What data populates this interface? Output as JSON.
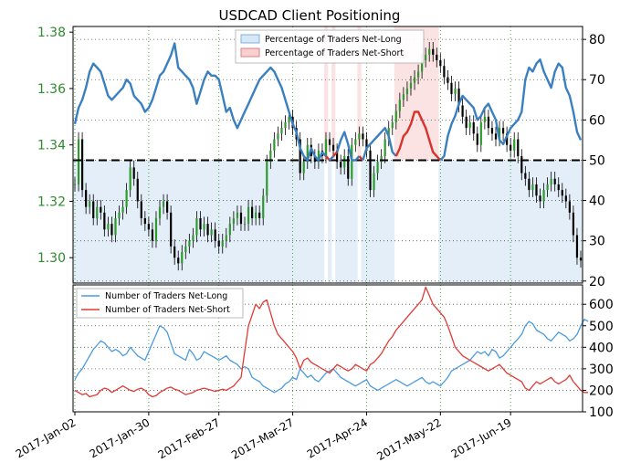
{
  "title": "USDCAD Client Positioning",
  "colors": {
    "price_axis": "#2e8b2e",
    "long_line": "#3a7fc0",
    "short_line": "#d8322a",
    "long_shade": "#e3eef8",
    "short_shade": "#fbe3e3",
    "candle": "#000000",
    "long_line_lower": "#4a9be0",
    "short_line_lower": "#e03a34",
    "grid": "#2ca02c"
  },
  "chart_data": [
    {
      "type": "line",
      "title": "USDCAD Client Positioning",
      "left_axis": {
        "ylim": [
          1.291,
          1.382
        ],
        "ticks": [
          "1.30",
          "1.32",
          "1.34",
          "1.36",
          "1.38"
        ]
      },
      "right_axis": {
        "ylim": [
          19.5,
          83.2
        ],
        "ticks": [
          "20",
          "30",
          "40",
          "50",
          "60",
          "70",
          "80"
        ]
      },
      "x_ticks": [
        "2017-Jan-02",
        "2017-Jan-30",
        "2017-Feb-27",
        "2017-Mar-27",
        "2017-Apr-24",
        "2017-May-22",
        "2017-Jun-19"
      ],
      "reference_line": 50,
      "legend": {
        "placement": "top-center",
        "entries": [
          "Percentage of Traders Net-Long",
          "Percentage of Traders Net-Short"
        ]
      },
      "price": [
        1.326,
        1.342,
        1.324,
        1.318,
        1.32,
        1.314,
        1.318,
        1.316,
        1.31,
        1.312,
        1.308,
        1.314,
        1.316,
        1.318,
        1.324,
        1.332,
        1.328,
        1.32,
        1.314,
        1.312,
        1.31,
        1.306,
        1.314,
        1.318,
        1.32,
        1.316,
        1.304,
        1.3,
        1.298,
        1.302,
        1.304,
        1.306,
        1.308,
        1.314,
        1.31,
        1.312,
        1.308,
        1.31,
        1.306,
        1.304,
        1.306,
        1.308,
        1.312,
        1.314,
        1.316,
        1.312,
        1.312,
        1.318,
        1.314,
        1.316,
        1.314,
        1.322,
        1.334,
        1.338,
        1.342,
        1.344,
        1.346,
        1.348,
        1.35,
        1.346,
        1.342,
        1.33,
        1.334,
        1.34,
        1.336,
        1.334,
        1.338,
        1.336,
        1.342,
        1.34,
        1.338,
        1.334,
        1.332,
        1.336,
        1.328,
        1.34,
        1.342,
        1.344,
        1.342,
        1.338,
        1.324,
        1.33,
        1.334,
        1.336,
        1.342,
        1.346,
        1.348,
        1.352,
        1.356,
        1.358,
        1.36,
        1.362,
        1.364,
        1.366,
        1.37,
        1.372,
        1.374,
        1.372,
        1.37,
        1.368,
        1.364,
        1.362,
        1.358,
        1.36,
        1.354,
        1.35,
        1.346,
        1.348,
        1.344,
        1.34,
        1.348,
        1.35,
        1.346,
        1.344,
        1.342,
        1.346,
        1.344,
        1.34,
        1.338,
        1.342,
        1.336,
        1.33,
        1.328,
        1.324,
        1.326,
        1.322,
        1.32,
        1.324,
        1.326,
        1.328,
        1.326,
        1.324,
        1.322,
        1.32,
        1.316,
        1.308,
        1.3,
        1.299
      ],
      "series": [
        {
          "name": "Percentage of Traders Net-Long",
          "values": [
            59,
            63,
            65,
            68,
            72,
            74,
            73,
            72,
            69,
            66,
            65,
            66,
            67,
            68,
            70,
            69,
            66,
            65,
            64,
            62,
            63,
            65,
            68,
            71,
            72,
            74,
            76,
            79,
            73,
            72,
            71,
            70,
            68,
            64,
            67,
            70,
            72,
            71,
            71,
            70,
            66,
            62,
            63,
            60,
            58,
            60,
            62,
            64,
            66,
            68,
            70,
            71,
            72,
            73,
            72,
            70,
            68,
            65,
            62,
            59,
            57,
            53,
            51,
            50,
            53,
            51,
            50,
            52,
            49,
            50,
            49,
            52,
            55,
            57,
            54,
            50,
            50,
            49,
            50,
            53,
            54,
            55,
            56,
            57,
            58,
            56,
            52,
            49,
            47,
            44,
            43,
            41,
            38,
            38,
            40,
            42,
            45,
            48,
            49,
            50,
            51,
            56,
            59,
            61,
            64,
            66,
            65,
            64,
            63,
            60,
            61,
            63,
            64,
            62,
            60,
            55,
            54,
            56,
            58,
            59,
            60,
            62,
            70,
            73,
            72,
            74,
            75,
            72,
            70,
            68,
            72,
            74,
            73,
            68,
            66,
            62,
            57,
            55,
            52,
            52
          ]
        },
        {
          "name": "Percentage of Traders Net-Short",
          "values": [
            41,
            37,
            35,
            32,
            28,
            26,
            27,
            28,
            31,
            34,
            35,
            34,
            33,
            32,
            30,
            31,
            34,
            35,
            36,
            38,
            37,
            35,
            32,
            29,
            28,
            26,
            24,
            21,
            27,
            28,
            29,
            30,
            32,
            36,
            33,
            30,
            28,
            29,
            29,
            30,
            34,
            38,
            37,
            40,
            42,
            40,
            38,
            36,
            34,
            32,
            30,
            29,
            28,
            27,
            28,
            30,
            32,
            35,
            38,
            41,
            43,
            47,
            49,
            50,
            47,
            49,
            50,
            48,
            51,
            50,
            51,
            48,
            45,
            43,
            46,
            50,
            50,
            51,
            50,
            47,
            46,
            45,
            44,
            43,
            42,
            44,
            48,
            51,
            53,
            56,
            57,
            59,
            62,
            62,
            60,
            58,
            55,
            52,
            51,
            50,
            49,
            44,
            41,
            39,
            36,
            34,
            35,
            36,
            37,
            40,
            39,
            37,
            36,
            38,
            40,
            45,
            46,
            44,
            42,
            41,
            40,
            38,
            30,
            27,
            28,
            26,
            25,
            28,
            30,
            32,
            28,
            26,
            27,
            32,
            34,
            38,
            43,
            45,
            48,
            48
          ]
        }
      ]
    },
    {
      "type": "line",
      "ylim": [
        100,
        690
      ],
      "y_ticks": [
        "100",
        "200",
        "300",
        "400",
        "500",
        "600"
      ],
      "legend": {
        "placement": "top-left",
        "entries": [
          "Number of Traders Net-Long",
          "Number of Traders Net-Short"
        ]
      },
      "series": [
        {
          "name": "Number of Traders Net-Long",
          "values": [
            250,
            280,
            300,
            330,
            360,
            390,
            410,
            430,
            420,
            400,
            380,
            390,
            380,
            360,
            370,
            400,
            380,
            360,
            350,
            340,
            380,
            420,
            460,
            500,
            490,
            470,
            420,
            370,
            360,
            350,
            340,
            390,
            370,
            340,
            350,
            380,
            370,
            360,
            350,
            340,
            350,
            360,
            340,
            330,
            320,
            300,
            310,
            300,
            260,
            250,
            240,
            220,
            210,
            200,
            190,
            200,
            210,
            230,
            240,
            260,
            250,
            300,
            280,
            260,
            270,
            250,
            240,
            260,
            280,
            290,
            300,
            280,
            260,
            250,
            240,
            230,
            220,
            230,
            240,
            250,
            220,
            210,
            200,
            210,
            220,
            230,
            240,
            250,
            240,
            230,
            220,
            230,
            240,
            250,
            260,
            240,
            230,
            240,
            230,
            220,
            240,
            260,
            290,
            300,
            310,
            320,
            330,
            340,
            360,
            380,
            370,
            380,
            360,
            390,
            380,
            350,
            360,
            380,
            400,
            420,
            440,
            460,
            500,
            520,
            510,
            480,
            470,
            460,
            440,
            430,
            450,
            470,
            460,
            450,
            430,
            440,
            460,
            500,
            530,
            520
          ]
        },
        {
          "name": "Number of Traders Net-Short",
          "values": [
            200,
            190,
            180,
            185,
            170,
            175,
            180,
            200,
            210,
            205,
            190,
            200,
            210,
            220,
            210,
            200,
            195,
            205,
            210,
            200,
            180,
            170,
            175,
            190,
            200,
            210,
            215,
            205,
            200,
            190,
            180,
            185,
            190,
            200,
            205,
            210,
            205,
            200,
            195,
            200,
            205,
            200,
            210,
            220,
            240,
            260,
            380,
            500,
            550,
            600,
            580,
            610,
            620,
            560,
            500,
            460,
            440,
            420,
            400,
            380,
            350,
            300,
            340,
            350,
            330,
            320,
            310,
            300,
            290,
            280,
            300,
            320,
            310,
            300,
            290,
            300,
            320,
            310,
            300,
            290,
            320,
            330,
            350,
            370,
            400,
            430,
            450,
            480,
            500,
            520,
            540,
            560,
            580,
            600,
            620,
            680,
            640,
            600,
            580,
            560,
            540,
            500,
            450,
            400,
            380,
            360,
            350,
            340,
            330,
            320,
            310,
            300,
            290,
            300,
            310,
            320,
            300,
            280,
            270,
            260,
            250,
            240,
            210,
            200,
            220,
            240,
            230,
            240,
            250,
            260,
            240,
            230,
            240,
            250,
            270,
            240,
            220,
            200,
            190,
            190
          ]
        }
      ]
    }
  ]
}
